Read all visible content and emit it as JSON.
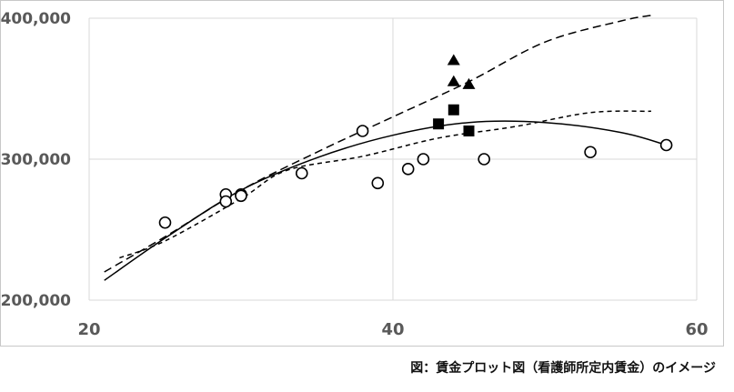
{
  "chart_data": {
    "type": "scatter",
    "title": "",
    "xlabel": "",
    "ylabel": "",
    "xlim": [
      20,
      60
    ],
    "ylim": [
      200000,
      400000
    ],
    "x_ticks": [
      20,
      40,
      60
    ],
    "y_ticks": [
      200000,
      300000,
      400000
    ],
    "x_tick_labels": [
      "20",
      "40",
      "60"
    ],
    "y_tick_labels": [
      "200,000",
      "300,000",
      "400,000"
    ],
    "grid": true,
    "legend": "none",
    "series": [
      {
        "marker": "circle",
        "points": [
          {
            "x": 25,
            "y": 255000
          },
          {
            "x": 29,
            "y": 275000
          },
          {
            "x": 29,
            "y": 270000
          },
          {
            "x": 30,
            "y": 275000
          },
          {
            "x": 30,
            "y": 274000
          },
          {
            "x": 34,
            "y": 290000
          },
          {
            "x": 38,
            "y": 320000
          },
          {
            "x": 39,
            "y": 283000
          },
          {
            "x": 41,
            "y": 293000
          },
          {
            "x": 42,
            "y": 300000
          },
          {
            "x": 46,
            "y": 300000
          },
          {
            "x": 53,
            "y": 305000
          },
          {
            "x": 58,
            "y": 310000
          }
        ]
      },
      {
        "marker": "triangle",
        "points": [
          {
            "x": 44,
            "y": 370000
          },
          {
            "x": 44,
            "y": 355000
          },
          {
            "x": 45,
            "y": 353000
          }
        ]
      },
      {
        "marker": "square",
        "points": [
          {
            "x": 43,
            "y": 325000
          },
          {
            "x": 44,
            "y": 335000
          },
          {
            "x": 45,
            "y": 320000
          }
        ]
      }
    ],
    "curves": [
      {
        "style": "dashed",
        "points": [
          {
            "x": 21,
            "y": 220000
          },
          {
            "x": 25,
            "y": 245000
          },
          {
            "x": 30,
            "y": 278000
          },
          {
            "x": 35,
            "y": 305000
          },
          {
            "x": 40,
            "y": 330000
          },
          {
            "x": 45,
            "y": 355000
          },
          {
            "x": 50,
            "y": 383000
          },
          {
            "x": 55,
            "y": 398000
          },
          {
            "x": 57,
            "y": 402000
          }
        ]
      },
      {
        "style": "dotted",
        "points": [
          {
            "x": 22,
            "y": 230000
          },
          {
            "x": 25,
            "y": 242000
          },
          {
            "x": 30,
            "y": 272000
          },
          {
            "x": 33,
            "y": 292000
          },
          {
            "x": 38,
            "y": 302000
          },
          {
            "x": 43,
            "y": 315000
          },
          {
            "x": 48,
            "y": 323000
          },
          {
            "x": 53,
            "y": 333000
          },
          {
            "x": 57,
            "y": 334000
          }
        ]
      },
      {
        "style": "solid",
        "points": [
          {
            "x": 21,
            "y": 214000
          },
          {
            "x": 25,
            "y": 244000
          },
          {
            "x": 30,
            "y": 278000
          },
          {
            "x": 35,
            "y": 301000
          },
          {
            "x": 40,
            "y": 317000
          },
          {
            "x": 45,
            "y": 326000
          },
          {
            "x": 50,
            "y": 326000
          },
          {
            "x": 55,
            "y": 319000
          },
          {
            "x": 58,
            "y": 310000
          }
        ]
      }
    ]
  },
  "caption": "図：賃金プロット図（看護師所定内賃金）のイメージ"
}
